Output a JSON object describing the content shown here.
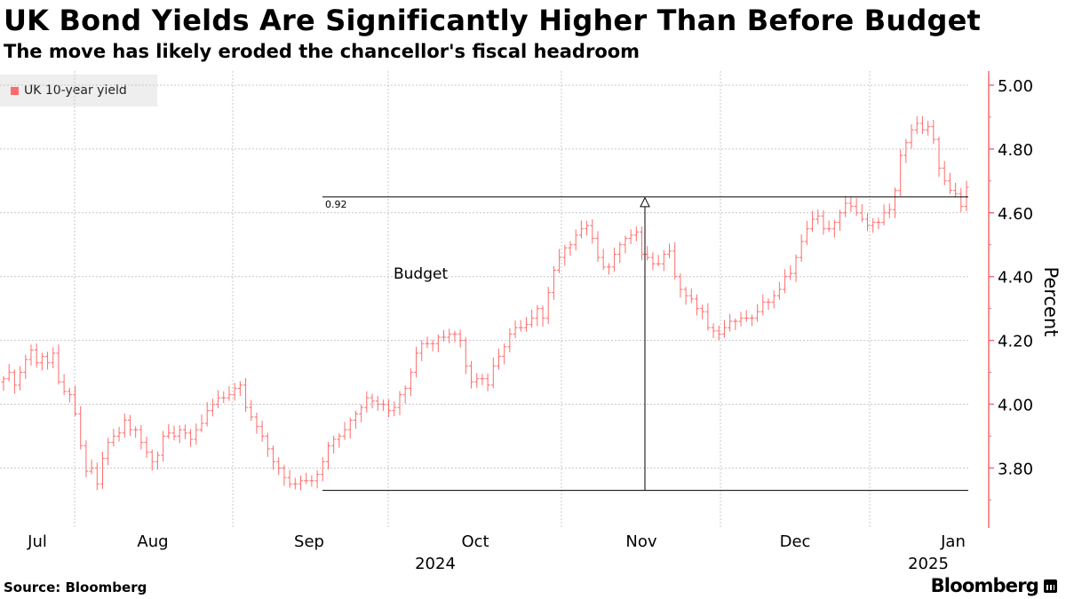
{
  "header": {
    "title": "UK Bond Yields Are Significantly Higher Than Before Budget",
    "subtitle": "The move has likely eroded the chancellor's fiscal headroom"
  },
  "footer": {
    "source": "Source: Bloomberg",
    "brand": "Bloomberg"
  },
  "colors": {
    "series": "#ff6b6b",
    "grid": "#c8c8c8",
    "annotation": "#000000"
  },
  "chart_data": {
    "type": "ohlc",
    "title": "UK Bond Yields Are Significantly Higher Than Before Budget",
    "ylabel": "Percent",
    "ylim": [
      3.66,
      5.04
    ],
    "yticks": [
      3.8,
      4.0,
      4.2,
      4.4,
      4.6,
      4.8,
      5.0
    ],
    "ytick_labels": [
      "3.80",
      "4.00",
      "4.20",
      "4.40",
      "4.60",
      "4.80",
      "5.00"
    ],
    "legend": [
      "UK 10-year yield"
    ],
    "legend_position": "top-left",
    "months": [
      "Jul",
      "Aug",
      "Sep",
      "Oct",
      "Nov",
      "Dec",
      "Jan"
    ],
    "years": [
      "2024",
      "2025"
    ],
    "annotations": {
      "budget_label": "Budget",
      "range_label": "0.92",
      "low": 3.73,
      "high": 4.65
    },
    "series": [
      {
        "name": "UK 10-year yield",
        "closes": [
          4.08,
          4.1,
          4.06,
          4.1,
          4.14,
          4.17,
          4.13,
          4.15,
          4.13,
          4.16,
          4.07,
          4.04,
          4.03,
          3.97,
          3.87,
          3.79,
          3.8,
          3.75,
          3.83,
          3.88,
          3.9,
          3.91,
          3.95,
          3.92,
          3.92,
          3.88,
          3.85,
          3.82,
          3.84,
          3.9,
          3.91,
          3.9,
          3.92,
          3.91,
          3.89,
          3.92,
          3.94,
          3.98,
          4.0,
          4.02,
          4.02,
          4.03,
          4.05,
          4.06,
          3.99,
          3.96,
          3.93,
          3.9,
          3.86,
          3.82,
          3.8,
          3.77,
          3.75,
          3.75,
          3.76,
          3.76,
          3.76,
          3.78,
          3.82,
          3.87,
          3.89,
          3.9,
          3.92,
          3.95,
          3.97,
          3.99,
          4.02,
          4.01,
          4.0,
          4.0,
          3.98,
          3.99,
          4.03,
          4.05,
          4.1,
          4.16,
          4.19,
          4.19,
          4.19,
          4.21,
          4.21,
          4.22,
          4.22,
          4.2,
          4.12,
          4.07,
          4.08,
          4.08,
          4.06,
          4.12,
          4.15,
          4.18,
          4.22,
          4.24,
          4.24,
          4.25,
          4.27,
          4.3,
          4.27,
          4.35,
          4.42,
          4.46,
          4.49,
          4.5,
          4.53,
          4.55,
          4.56,
          4.52,
          4.46,
          4.43,
          4.43,
          4.47,
          4.5,
          4.52,
          4.53,
          4.54,
          4.47,
          4.46,
          4.44,
          4.44,
          4.47,
          4.48,
          4.4,
          4.36,
          4.34,
          4.33,
          4.3,
          4.29,
          4.24,
          4.23,
          4.22,
          4.24,
          4.26,
          4.26,
          4.27,
          4.27,
          4.27,
          4.29,
          4.32,
          4.32,
          4.34,
          4.36,
          4.4,
          4.41,
          4.46,
          4.51,
          4.55,
          4.58,
          4.59,
          4.55,
          4.55,
          4.57,
          4.6,
          4.63,
          4.62,
          4.6,
          4.58,
          4.56,
          4.57,
          4.57,
          4.6,
          4.61,
          4.67,
          4.78,
          4.82,
          4.86,
          4.88,
          4.86,
          4.87,
          4.83,
          4.74,
          4.7,
          4.67,
          4.66,
          4.62,
          4.68
        ]
      }
    ]
  }
}
